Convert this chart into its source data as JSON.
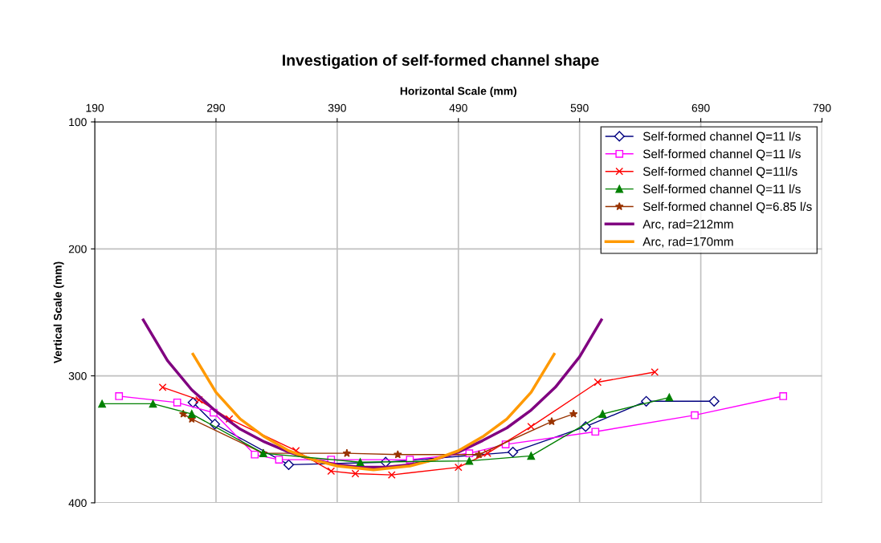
{
  "chart_data": {
    "type": "line",
    "title": "Investigation of self-formed channel shape",
    "xlabel": "Horizontal Scale (mm)",
    "ylabel": "Vertical Scale (mm)",
    "xlim": [
      190,
      790
    ],
    "xticks": [
      190,
      290,
      390,
      490,
      590,
      690,
      790
    ],
    "ylim": [
      400,
      100
    ],
    "yticks": [
      100,
      200,
      300,
      400
    ],
    "grid": true,
    "legend": "top right",
    "line_style": "solid",
    "series": [
      {
        "name": "Self-formed channel Q=11 l/s",
        "color": "#000080",
        "marker": "diamond",
        "x": [
          271,
          289,
          350,
          430,
          535,
          595,
          645,
          701
        ],
        "values": [
          321,
          338,
          370,
          368,
          360,
          340,
          320,
          320
        ]
      },
      {
        "name": "Self-formed channel Q=11 l/s",
        "color": "#ff00ff",
        "marker": "square",
        "x": [
          210,
          258,
          288,
          322,
          342,
          385,
          450,
          499,
          529,
          603,
          685,
          758
        ],
        "values": [
          316,
          321,
          329,
          362,
          366,
          366,
          366,
          361,
          354,
          344,
          331,
          316
        ]
      },
      {
        "name": "Self-formed channel Q=11l/s",
        "color": "#ff0000",
        "marker": "cross",
        "x": [
          246,
          276,
          301,
          356,
          385,
          405,
          435,
          490,
          514,
          550,
          605,
          652
        ],
        "values": [
          309,
          319,
          334,
          359,
          375,
          377,
          378,
          372,
          361,
          340,
          305,
          297
        ]
      },
      {
        "name": "Self-formed channel Q=11 l/s",
        "color": "#008000",
        "marker": "triangle",
        "x": [
          196,
          238,
          270,
          329,
          409,
          499,
          550,
          609,
          664
        ],
        "values": [
          322,
          322,
          330,
          361,
          368,
          367,
          363,
          330,
          317
        ]
      },
      {
        "name": "Self-formed channel Q=6.85 l/s",
        "color": "#993300",
        "marker": "star",
        "x": [
          263,
          270,
          329,
          398,
          440,
          507,
          567,
          585
        ],
        "values": [
          330,
          334,
          361,
          361,
          362,
          362,
          336,
          330
        ]
      },
      {
        "name": "Arc, rad=212mm",
        "color": "#800080",
        "marker": "none",
        "x": [
          230,
          250,
          270,
          290,
          310,
          330,
          350,
          370,
          390,
          410,
          430,
          450,
          470,
          490,
          510,
          530,
          550,
          570,
          590,
          608
        ],
        "values": [
          256,
          288,
          311,
          328,
          342,
          352,
          360,
          366,
          370,
          372,
          372,
          370,
          366,
          360,
          351,
          341,
          327,
          309,
          285,
          256
        ]
      },
      {
        "name": "Arc, rad=170mm",
        "color": "#ff9900",
        "marker": "none",
        "x": [
          271,
          290,
          310,
          330,
          350,
          370,
          390,
          420,
          450,
          470,
          490,
          510,
          530,
          550,
          569
        ],
        "values": [
          283,
          313,
          334,
          348,
          359,
          366,
          371,
          374,
          371,
          366,
          359,
          348,
          334,
          313,
          283
        ]
      }
    ]
  }
}
